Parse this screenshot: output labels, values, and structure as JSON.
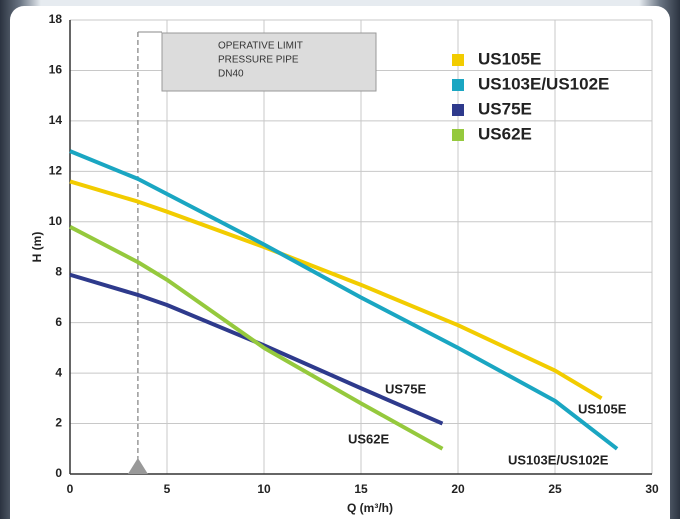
{
  "chart_data": {
    "type": "line",
    "xlabel": "Q (m³/h)",
    "ylabel": "H (m)",
    "xlim": [
      0,
      30
    ],
    "xticks": [
      0,
      5,
      10,
      15,
      20,
      25,
      30
    ],
    "ylim": [
      0,
      18
    ],
    "yticks": [
      0,
      2,
      4,
      6,
      8,
      10,
      12,
      14,
      16,
      18
    ],
    "grid": true,
    "reference_x": 3.5,
    "annotation": [
      "OPERATIVE LIMIT",
      "PRESSURE PIPE",
      "DN40"
    ],
    "series": [
      {
        "name": "US105E",
        "color": "#f2cc00",
        "x": [
          0,
          3.5,
          5,
          10,
          12,
          15,
          20,
          25,
          27.4
        ],
        "values": [
          11.6,
          10.8,
          10.4,
          9.0,
          8.4,
          7.5,
          5.9,
          4.1,
          3.0
        ]
      },
      {
        "name": "US103E/US102E",
        "color": "#1aa6c2",
        "x": [
          0,
          3.5,
          5,
          10,
          15,
          20,
          25,
          28.2
        ],
        "values": [
          12.8,
          11.7,
          11.1,
          9.1,
          7.0,
          5.0,
          2.9,
          1.0
        ]
      },
      {
        "name": "US75E",
        "color": "#2e3a8c",
        "x": [
          0,
          3.5,
          5,
          10,
          15,
          19.2
        ],
        "values": [
          7.9,
          7.1,
          6.7,
          5.1,
          3.4,
          2.0
        ]
      },
      {
        "name": "US62E",
        "color": "#95c93d",
        "x": [
          0,
          3.5,
          5,
          10,
          15,
          19.2
        ],
        "values": [
          9.8,
          8.4,
          7.7,
          5.0,
          2.8,
          1.0
        ]
      }
    ]
  }
}
